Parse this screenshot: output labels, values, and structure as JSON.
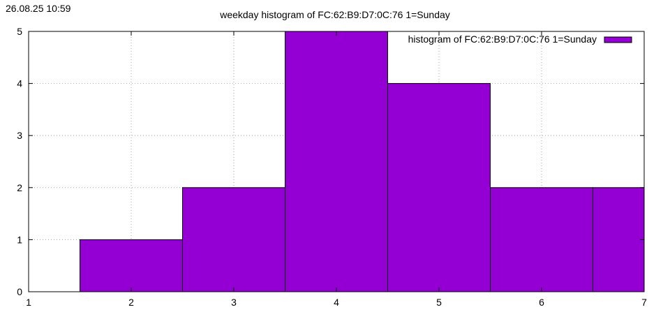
{
  "timestamp": "26.08.25 10:59",
  "chart_data": {
    "type": "bar",
    "title": "weekday histogram of FC:62:B9:D7:0C:76 1=Sunday",
    "xlabel": "",
    "ylabel": "",
    "xlim": [
      1,
      7
    ],
    "ylim": [
      0,
      5
    ],
    "x_ticks": [
      1,
      2,
      3,
      4,
      5,
      6,
      7
    ],
    "y_ticks": [
      0,
      1,
      2,
      3,
      4,
      5
    ],
    "bar_width": 1,
    "bars": [
      {
        "x": 2,
        "value": 1
      },
      {
        "x": 3,
        "value": 2
      },
      {
        "x": 4,
        "value": 5
      },
      {
        "x": 5,
        "value": 4
      },
      {
        "x": 6,
        "value": 2
      },
      {
        "x": 7,
        "value": 2
      }
    ],
    "series": [
      {
        "name": "histogram of FC:62:B9:D7:0C:76 1=Sunday",
        "color": "#9400d3"
      }
    ],
    "grid": true,
    "legend_position": "top-right",
    "colors": {
      "bar_fill": "#9400d3",
      "bar_stroke": "#000000",
      "grid": "#a0a0a0",
      "axes": "#000000"
    }
  }
}
